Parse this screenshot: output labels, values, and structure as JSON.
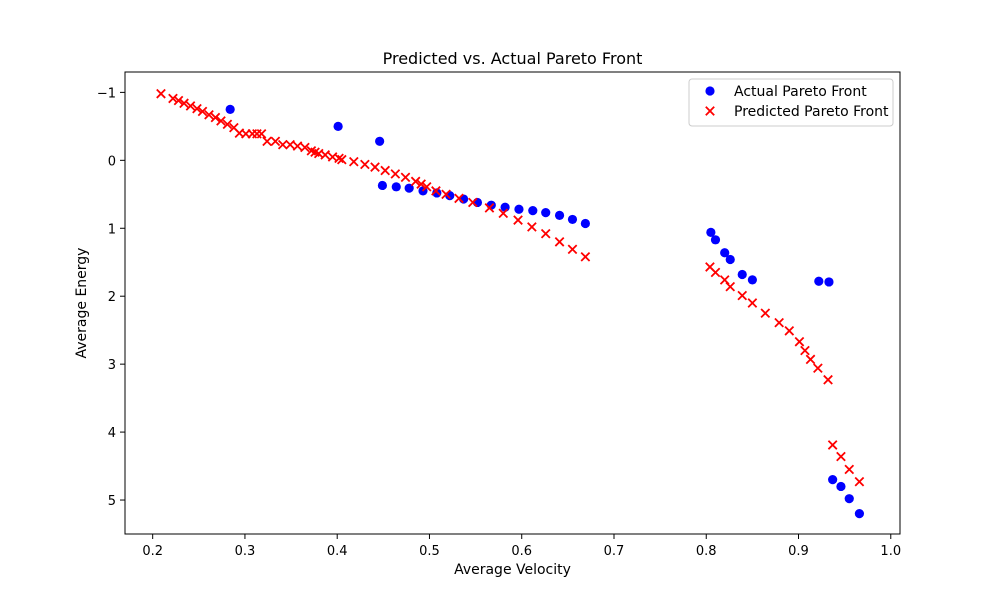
{
  "chart_data": {
    "type": "scatter",
    "title": "Predicted vs. Actual Pareto Front",
    "xlabel": "Average Velocity",
    "ylabel": "Average Energy",
    "xlim": [
      0.17,
      1.01
    ],
    "ylim": [
      5.5,
      -1.3
    ],
    "y_inverted": true,
    "xticks": [
      0.2,
      0.3,
      0.4,
      0.5,
      0.6,
      0.7,
      0.8,
      0.9,
      1.0
    ],
    "xtick_labels": [
      "0.2",
      "0.3",
      "0.4",
      "0.5",
      "0.6",
      "0.7",
      "0.8",
      "0.9",
      "1.0"
    ],
    "yticks": [
      -1,
      0,
      1,
      2,
      3,
      4,
      5
    ],
    "ytick_labels": [
      "−1",
      "0",
      "1",
      "2",
      "3",
      "4",
      "5"
    ],
    "grid": false,
    "legend_position": "top-right",
    "series": [
      {
        "name": "Actual Pareto Front",
        "marker": "circle",
        "color": "#0000ff",
        "points": [
          [
            0.284,
            -0.75
          ],
          [
            0.401,
            -0.5
          ],
          [
            0.446,
            -0.28
          ],
          [
            0.449,
            0.37
          ],
          [
            0.464,
            0.39
          ],
          [
            0.478,
            0.41
          ],
          [
            0.493,
            0.45
          ],
          [
            0.508,
            0.48
          ],
          [
            0.522,
            0.52
          ],
          [
            0.537,
            0.57
          ],
          [
            0.552,
            0.62
          ],
          [
            0.567,
            0.66
          ],
          [
            0.582,
            0.69
          ],
          [
            0.597,
            0.72
          ],
          [
            0.612,
            0.74
          ],
          [
            0.626,
            0.77
          ],
          [
            0.641,
            0.81
          ],
          [
            0.655,
            0.87
          ],
          [
            0.669,
            0.93
          ],
          [
            0.805,
            1.06
          ],
          [
            0.81,
            1.17
          ],
          [
            0.82,
            1.36
          ],
          [
            0.826,
            1.46
          ],
          [
            0.839,
            1.68
          ],
          [
            0.85,
            1.76
          ],
          [
            0.922,
            1.78
          ],
          [
            0.933,
            1.79
          ],
          [
            0.937,
            4.7
          ],
          [
            0.946,
            4.8
          ],
          [
            0.955,
            4.98
          ],
          [
            0.966,
            5.2
          ]
        ]
      },
      {
        "name": "Predicted Pareto Front",
        "marker": "x",
        "color": "#ff0000",
        "points": [
          [
            0.209,
            -0.98
          ],
          [
            0.222,
            -0.91
          ],
          [
            0.228,
            -0.88
          ],
          [
            0.234,
            -0.84
          ],
          [
            0.241,
            -0.8
          ],
          [
            0.248,
            -0.76
          ],
          [
            0.254,
            -0.72
          ],
          [
            0.261,
            -0.67
          ],
          [
            0.268,
            -0.63
          ],
          [
            0.274,
            -0.58
          ],
          [
            0.281,
            -0.53
          ],
          [
            0.288,
            -0.48
          ],
          [
            0.294,
            -0.4
          ],
          [
            0.301,
            -0.39
          ],
          [
            0.308,
            -0.39
          ],
          [
            0.313,
            -0.39
          ],
          [
            0.318,
            -0.39
          ],
          [
            0.324,
            -0.28
          ],
          [
            0.333,
            -0.28
          ],
          [
            0.341,
            -0.23
          ],
          [
            0.349,
            -0.23
          ],
          [
            0.357,
            -0.21
          ],
          [
            0.365,
            -0.19
          ],
          [
            0.372,
            -0.14
          ],
          [
            0.376,
            -0.12
          ],
          [
            0.38,
            -0.1
          ],
          [
            0.387,
            -0.08
          ],
          [
            0.395,
            -0.05
          ],
          [
            0.402,
            -0.03
          ],
          [
            0.405,
            -0.01
          ],
          [
            0.418,
            0.02
          ],
          [
            0.43,
            0.06
          ],
          [
            0.441,
            0.1
          ],
          [
            0.452,
            0.15
          ],
          [
            0.463,
            0.2
          ],
          [
            0.474,
            0.25
          ],
          [
            0.485,
            0.31
          ],
          [
            0.491,
            0.35
          ],
          [
            0.497,
            0.39
          ],
          [
            0.507,
            0.45
          ],
          [
            0.518,
            0.5
          ],
          [
            0.532,
            0.56
          ],
          [
            0.547,
            0.62
          ],
          [
            0.565,
            0.7
          ],
          [
            0.58,
            0.78
          ],
          [
            0.596,
            0.88
          ],
          [
            0.611,
            0.98
          ],
          [
            0.626,
            1.08
          ],
          [
            0.641,
            1.2
          ],
          [
            0.655,
            1.31
          ],
          [
            0.669,
            1.42
          ],
          [
            0.804,
            1.57
          ],
          [
            0.81,
            1.65
          ],
          [
            0.82,
            1.76
          ],
          [
            0.826,
            1.86
          ],
          [
            0.839,
            1.99
          ],
          [
            0.85,
            2.1
          ],
          [
            0.864,
            2.25
          ],
          [
            0.879,
            2.39
          ],
          [
            0.89,
            2.51
          ],
          [
            0.901,
            2.67
          ],
          [
            0.907,
            2.8
          ],
          [
            0.913,
            2.93
          ],
          [
            0.921,
            3.06
          ],
          [
            0.932,
            3.23
          ],
          [
            0.937,
            4.19
          ],
          [
            0.946,
            4.36
          ],
          [
            0.955,
            4.55
          ],
          [
            0.966,
            4.73
          ]
        ]
      }
    ]
  }
}
